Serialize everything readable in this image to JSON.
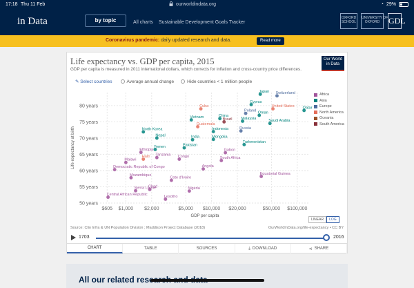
{
  "status_bar": {
    "time": "17:18",
    "date": "Thu 11 Feb",
    "url": "ourworldindata.org",
    "battery": "29%"
  },
  "site_header": {
    "logo_text": "in Data",
    "by_topic": "by topic",
    "nav": [
      "All charts",
      "Sustainable Development Goals Tracker"
    ],
    "badge_1": "OXFORD\nSCHOOL",
    "badge_2": "UNIVERSITY OF\nOXFORD",
    "badge_3": "GDL"
  },
  "banner": {
    "prefix": "Coronavirus pandemic:",
    "text": " daily updated research and data.",
    "button": "Read more"
  },
  "chart_card": {
    "title": "Life expectancy vs. GDP per capita, 2015",
    "subtitle": "GDP per capita is measured in 2011 international dollars, which corrects for inflation and cross-country price differences.",
    "logo_line1": "Our World",
    "logo_line2": "in Data",
    "controls": {
      "select_countries": "Select countries",
      "average_change": "Average annual change",
      "hide_small": "Hide countries < 1 million people"
    },
    "scale": {
      "linear": "LINEAR",
      "log": "LOG"
    },
    "source": "Source: Clio Infra & UN Population Division ; Maddison Project Database (2018)",
    "url": "OurWorldInData.org/life-expectancy • CC BY",
    "timeline": {
      "start": "1703",
      "end": "2016",
      "position": 1.0
    },
    "tabs": [
      "CHART",
      "TABLE",
      "SOURCES",
      "DOWNLOAD",
      "SHARE"
    ]
  },
  "related_heading": "All our related research and data",
  "colors": {
    "Africa": "#a2559c",
    "Asia": "#00847e",
    "Europe": "#4c6a9c",
    "North America": "#e56e5a",
    "Oceania": "#9a5129",
    "South America": "#883039"
  },
  "chart_data": {
    "type": "scatter",
    "xlabel": "GDP per capita",
    "ylabel": "Life expectancy at birth",
    "xscale": "log",
    "xlim": [
      500,
      140000
    ],
    "ylim": [
      50,
      84
    ],
    "xticks": [
      "$605",
      "$1,000",
      "$2,000",
      "$5,000",
      "$10,000",
      "$20,000",
      "$50,000",
      "$100,000"
    ],
    "xtick_values": [
      605,
      1000,
      2000,
      5000,
      10000,
      20000,
      50000,
      100000
    ],
    "yticks": [
      "50 years",
      "55 years",
      "60 years",
      "65 years",
      "70 years",
      "75 years",
      "80 years"
    ],
    "ytick_values": [
      50,
      55,
      60,
      65,
      70,
      75,
      80
    ],
    "legend": [
      "Africa",
      "Asia",
      "Europe",
      "North America",
      "Oceania",
      "South America"
    ],
    "labeled_points": [
      {
        "label": "Switzerland",
        "region": "Europe",
        "x": 58000,
        "y": 83.0
      },
      {
        "label": "Japan",
        "region": "Asia",
        "x": 37000,
        "y": 83.5
      },
      {
        "label": "Qatar",
        "region": "Asia",
        "x": 120000,
        "y": 78.5
      },
      {
        "label": "Cyprus",
        "region": "Asia",
        "x": 29000,
        "y": 80.3
      },
      {
        "label": "United States",
        "region": "North America",
        "x": 52000,
        "y": 79.0
      },
      {
        "label": "Poland",
        "region": "Europe",
        "x": 25000,
        "y": 77.6
      },
      {
        "label": "Oman",
        "region": "Asia",
        "x": 36000,
        "y": 77.0
      },
      {
        "label": "Cuba",
        "region": "North America",
        "x": 7500,
        "y": 79.0
      },
      {
        "label": "China",
        "region": "Asia",
        "x": 12500,
        "y": 76.0
      },
      {
        "label": "Brazil",
        "region": "South America",
        "x": 14000,
        "y": 75.0
      },
      {
        "label": "Malaysia",
        "region": "Asia",
        "x": 23000,
        "y": 75.2
      },
      {
        "label": "Vietnam",
        "region": "Asia",
        "x": 5800,
        "y": 75.6
      },
      {
        "label": "Saudi Arabia",
        "region": "Asia",
        "x": 48000,
        "y": 74.5
      },
      {
        "label": "Guatemala",
        "region": "North America",
        "x": 6900,
        "y": 73.5
      },
      {
        "label": "Indonesia",
        "region": "Asia",
        "x": 10500,
        "y": 72.0
      },
      {
        "label": "Russia",
        "region": "Europe",
        "x": 22000,
        "y": 72.2
      },
      {
        "label": "North Korea",
        "region": "Asia",
        "x": 1600,
        "y": 71.9
      },
      {
        "label": "Nepal",
        "region": "Asia",
        "x": 2300,
        "y": 70.0
      },
      {
        "label": "India",
        "region": "Asia",
        "x": 6000,
        "y": 69.5
      },
      {
        "label": "Mongolia",
        "region": "Asia",
        "x": 10500,
        "y": 69.6
      },
      {
        "label": "Turkmenistan",
        "region": "Asia",
        "x": 24000,
        "y": 68.0
      },
      {
        "label": "Yemen",
        "region": "Asia",
        "x": 2200,
        "y": 66.5
      },
      {
        "label": "Pakistan",
        "region": "Asia",
        "x": 4800,
        "y": 67.0
      },
      {
        "label": "Ethiopia",
        "region": "Africa",
        "x": 1500,
        "y": 65.6
      },
      {
        "label": "Tanzania",
        "region": "Africa",
        "x": 2300,
        "y": 64.0
      },
      {
        "label": "Gabon",
        "region": "Africa",
        "x": 14500,
        "y": 65.5
      },
      {
        "label": "Haiti",
        "region": "North America",
        "x": 1600,
        "y": 63.5
      },
      {
        "label": "Congo",
        "region": "Africa",
        "x": 4200,
        "y": 63.5
      },
      {
        "label": "South Africa",
        "region": "Africa",
        "x": 13000,
        "y": 63.1
      },
      {
        "label": "Malawi",
        "region": "Africa",
        "x": 1000,
        "y": 62.5
      },
      {
        "label": "Democratic Republic of Congo",
        "region": "Africa",
        "x": 740,
        "y": 60.3
      },
      {
        "label": "Angola",
        "region": "Africa",
        "x": 8000,
        "y": 60.5
      },
      {
        "label": "Mozambique",
        "region": "Africa",
        "x": 1150,
        "y": 57.8
      },
      {
        "label": "Equatorial Guinea",
        "region": "Africa",
        "x": 38000,
        "y": 58.2
      },
      {
        "label": "Cote d'Ivoire",
        "region": "Africa",
        "x": 3400,
        "y": 57.0
      },
      {
        "label": "Chad",
        "region": "Africa",
        "x": 1900,
        "y": 54.2
      },
      {
        "label": "Nigeria",
        "region": "Africa",
        "x": 5500,
        "y": 53.7
      },
      {
        "label": "Sierra Leone",
        "region": "Africa",
        "x": 1300,
        "y": 53.8
      },
      {
        "label": "Central African Republic",
        "region": "Africa",
        "x": 620,
        "y": 51.8
      },
      {
        "label": "Lesotho",
        "region": "Africa",
        "x": 2900,
        "y": 51.2
      }
    ]
  }
}
